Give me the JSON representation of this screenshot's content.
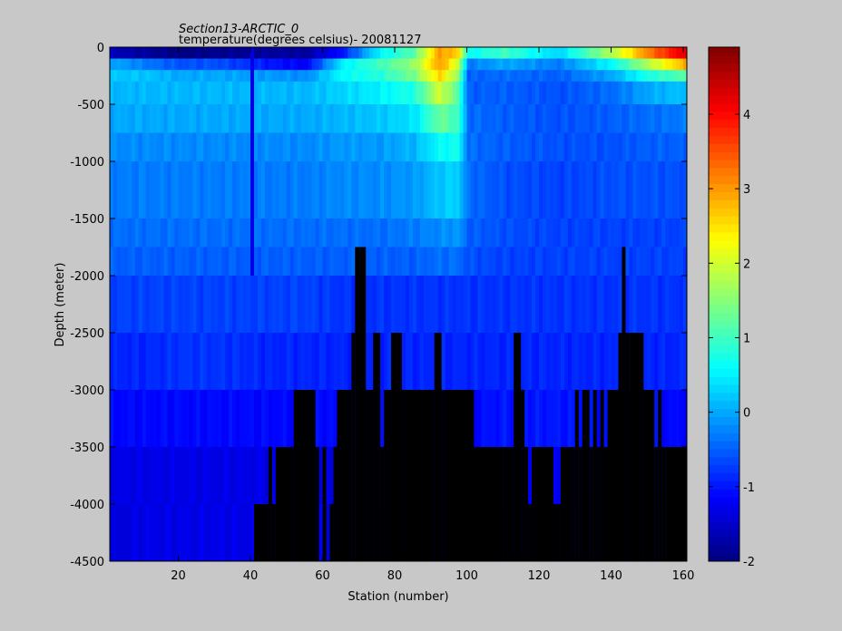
{
  "chart_data": {
    "type": "heatmap",
    "title": "Section13-ARCTIC_0",
    "subtitle": "temperature(degrees  celsius)- 20081127",
    "xlabel": "Station (number)",
    "ylabel": "Depth (meter)",
    "xlim": [
      1,
      161
    ],
    "ylim": [
      -4500,
      0
    ],
    "x_ticks": [
      20,
      40,
      60,
      80,
      100,
      120,
      140,
      160
    ],
    "y_ticks": [
      0,
      -500,
      -1000,
      -1500,
      -2000,
      -2500,
      -3000,
      -3500,
      -4000,
      -4500
    ],
    "colorbar": {
      "range": [
        -2,
        4.9
      ],
      "ticks": [
        -2,
        -1,
        0,
        1,
        2,
        3,
        4
      ],
      "colormap": "jet"
    },
    "layer_depths": [
      0,
      -100,
      -200,
      -300,
      -500,
      -750,
      -1000,
      -1500,
      -1750,
      -2000,
      -2500,
      -3000,
      -3500,
      -4000,
      -4500
    ],
    "anchors": [
      {
        "x": 1,
        "t": [
          -1.6,
          0.0,
          0.2,
          0.1,
          0.0,
          -0.2,
          -0.3,
          -0.4,
          -0.5,
          -0.7,
          -0.9,
          -1.1,
          -1.3,
          -1.4
        ]
      },
      {
        "x": 10,
        "t": [
          -1.8,
          -0.3,
          0.2,
          0.1,
          0.0,
          -0.2,
          -0.3,
          -0.4,
          -0.5,
          -0.7,
          -0.9,
          -1.1,
          -1.3,
          -1.3
        ]
      },
      {
        "x": 20,
        "t": [
          -2.0,
          -0.6,
          0.0,
          0.1,
          0.0,
          -0.2,
          -0.3,
          -0.4,
          -0.5,
          -0.7,
          -0.8,
          -1.1,
          -1.3,
          -1.3
        ]
      },
      {
        "x": 30,
        "t": [
          -1.9,
          -0.6,
          0.0,
          0.1,
          0.0,
          -0.2,
          -0.3,
          -0.4,
          -0.5,
          -0.7,
          -0.8,
          -1.1,
          -1.3,
          -1.3
        ]
      },
      {
        "x": 45,
        "t": [
          -1.8,
          -1.0,
          -0.1,
          0.1,
          0.0,
          -0.2,
          -0.3,
          -0.4,
          -0.5,
          -0.7,
          -0.9,
          -1.1,
          -1.3,
          -1.3
        ]
      },
      {
        "x": 55,
        "t": [
          -1.8,
          -1.2,
          -0.2,
          0.1,
          0.0,
          -0.2,
          -0.3,
          -0.4,
          -0.5,
          -0.7,
          -0.9,
          -1.1,
          -1.3,
          -1.3
        ]
      },
      {
        "x": 65,
        "t": [
          -1.0,
          0.5,
          0.6,
          0.3,
          0.1,
          -0.1,
          -0.2,
          -0.4,
          -0.5,
          -0.8,
          -0.9,
          -1.1,
          -1.3,
          -1.3
        ]
      },
      {
        "x": 75,
        "t": [
          0.5,
          1.0,
          0.8,
          0.5,
          0.2,
          -0.1,
          -0.2,
          -0.4,
          -0.5,
          -0.8,
          -0.9,
          -1.1,
          -1.3,
          -1.3
        ]
      },
      {
        "x": 85,
        "t": [
          1.2,
          1.6,
          1.4,
          0.8,
          0.4,
          0.1,
          -0.1,
          -0.3,
          -0.5,
          -0.8,
          -0.9,
          -1.1,
          -1.3,
          -1.3
        ]
      },
      {
        "x": 92,
        "t": [
          3.0,
          3.0,
          2.6,
          2.0,
          1.3,
          0.6,
          0.2,
          -0.2,
          -0.4,
          -0.8,
          -0.9,
          -1.1,
          -1.3,
          -1.3
        ]
      },
      {
        "x": 97,
        "t": [
          2.6,
          2.0,
          1.6,
          1.2,
          1.0,
          0.7,
          0.3,
          -0.1,
          -0.4,
          -0.8,
          -0.9,
          -1.1,
          -1.3,
          -1.3
        ]
      },
      {
        "x": 100,
        "t": [
          0.6,
          -0.3,
          -0.5,
          -0.5,
          -0.4,
          -0.4,
          -0.4,
          -0.5,
          -0.6,
          -0.8,
          -0.9,
          -1.1,
          -1.3,
          -1.3
        ]
      },
      {
        "x": 110,
        "t": [
          1.0,
          0.0,
          -0.4,
          -0.5,
          -0.5,
          -0.5,
          -0.6,
          -0.6,
          -0.7,
          -0.8,
          -0.9,
          -1.0,
          -1.2,
          -1.3
        ]
      },
      {
        "x": 125,
        "t": [
          0.3,
          -0.3,
          -0.5,
          -0.6,
          -0.6,
          -0.6,
          -0.7,
          -0.7,
          -0.7,
          -0.8,
          -0.9,
          -1.0,
          -1.2,
          -1.3
        ]
      },
      {
        "x": 140,
        "t": [
          1.8,
          0.6,
          0.0,
          -0.4,
          -0.5,
          -0.6,
          -0.6,
          -0.7,
          -0.7,
          -0.8,
          -0.9,
          -1.1,
          -1.2,
          -1.3
        ]
      },
      {
        "x": 150,
        "t": [
          3.2,
          1.8,
          0.8,
          0.0,
          -0.4,
          -0.5,
          -0.6,
          -0.7,
          -0.7,
          -0.8,
          -0.9,
          -1.1,
          -1.2,
          -1.3
        ]
      },
      {
        "x": 161,
        "t": [
          4.4,
          3.0,
          1.2,
          0.2,
          -0.3,
          -0.5,
          -0.6,
          -0.7,
          -0.7,
          -0.8,
          -0.9,
          -1.1,
          -1.2,
          -1.3
        ]
      }
    ],
    "seafloor_bottom_depth": [
      [
        1,
        40,
        -4500
      ],
      [
        41,
        44,
        -4000
      ],
      [
        45,
        45,
        -3500
      ],
      [
        46,
        46,
        -4000
      ],
      [
        47,
        51,
        -3500
      ],
      [
        52,
        57,
        -3000
      ],
      [
        58,
        58,
        -3500
      ],
      [
        59,
        59,
        -4500
      ],
      [
        60,
        60,
        -3500
      ],
      [
        61,
        61,
        -4500
      ],
      [
        62,
        62,
        -4000
      ],
      [
        63,
        63,
        -3500
      ],
      [
        64,
        67,
        -3000
      ],
      [
        68,
        68,
        -2500
      ],
      [
        69,
        71,
        -1750
      ],
      [
        72,
        73,
        -3000
      ],
      [
        74,
        75,
        -2500
      ],
      [
        76,
        76,
        -3500
      ],
      [
        77,
        78,
        -3000
      ],
      [
        79,
        80,
        -2500
      ],
      [
        81,
        81,
        -2500
      ],
      [
        82,
        82,
        -3000
      ],
      [
        83,
        90,
        -3000
      ],
      [
        91,
        92,
        -2500
      ],
      [
        93,
        93,
        -3000
      ],
      [
        94,
        101,
        -3000
      ],
      [
        102,
        109,
        -3500
      ],
      [
        110,
        112,
        -3500
      ],
      [
        113,
        114,
        -2500
      ],
      [
        115,
        115,
        -3000
      ],
      [
        116,
        116,
        -3500
      ],
      [
        117,
        117,
        -4000
      ],
      [
        118,
        118,
        -3500
      ],
      [
        119,
        123,
        -3500
      ],
      [
        124,
        125,
        -4000
      ],
      [
        126,
        128,
        -3500
      ],
      [
        129,
        129,
        -3500
      ],
      [
        130,
        130,
        -3000
      ],
      [
        131,
        131,
        -3500
      ],
      [
        132,
        133,
        -3000
      ],
      [
        134,
        134,
        -3500
      ],
      [
        135,
        135,
        -3000
      ],
      [
        136,
        136,
        -3500
      ],
      [
        137,
        137,
        -3000
      ],
      [
        138,
        138,
        -3500
      ],
      [
        139,
        141,
        -3000
      ],
      [
        142,
        142,
        -2500
      ],
      [
        143,
        143,
        -1750
      ],
      [
        144,
        144,
        -2500
      ],
      [
        145,
        148,
        -2500
      ],
      [
        149,
        151,
        -3000
      ],
      [
        152,
        152,
        -3500
      ],
      [
        153,
        153,
        -3000
      ],
      [
        154,
        154,
        -3500
      ],
      [
        155,
        161,
        -3500
      ]
    ],
    "vertical_stripe_station": 40
  }
}
